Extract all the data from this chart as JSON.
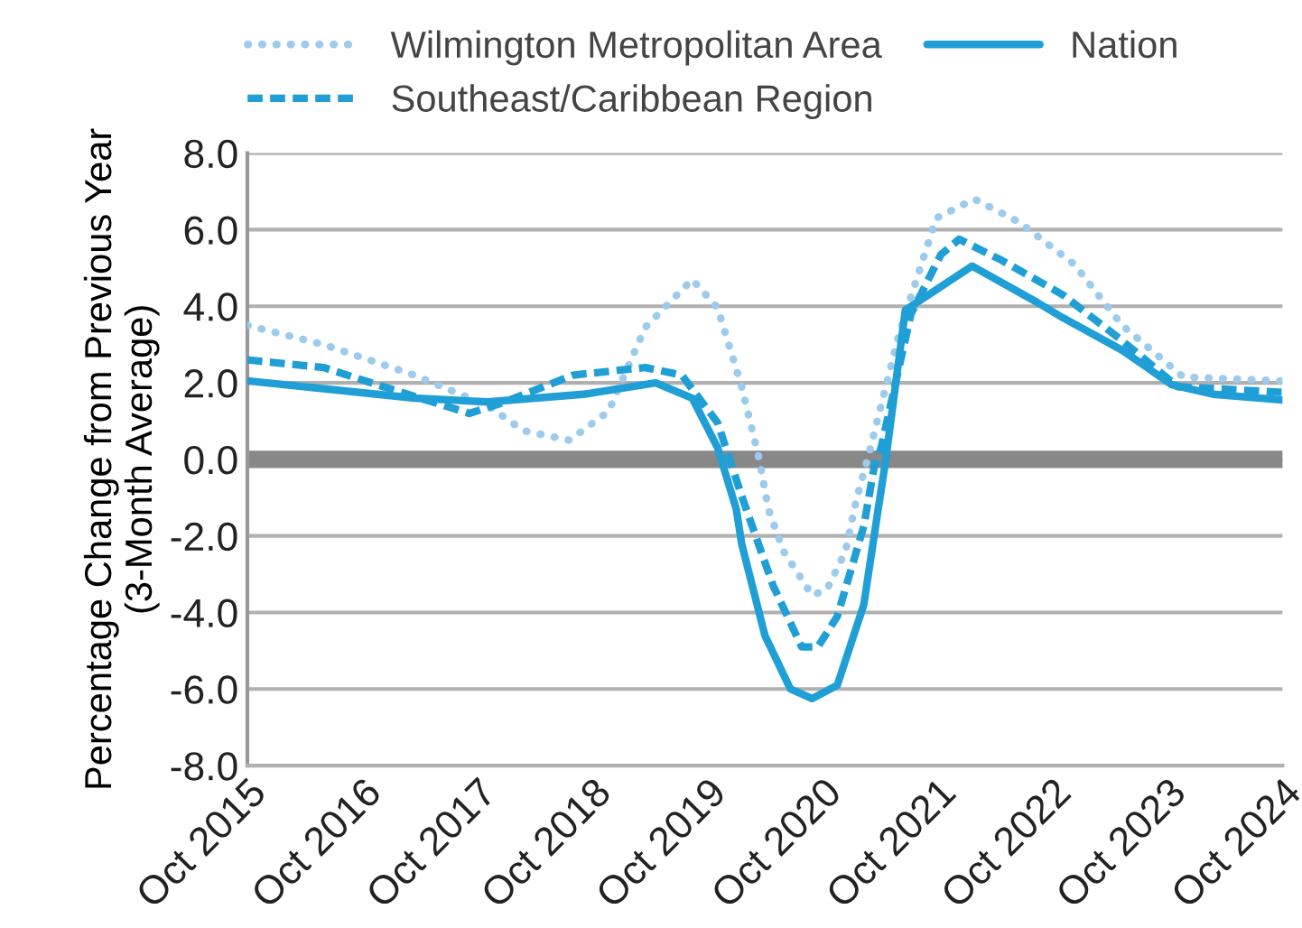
{
  "chart_data": {
    "type": "line",
    "ylabel": "Percentage Change from Previous Year\n(3-Month Average)",
    "xlim": [
      "2015-10-01",
      "2024-10-01"
    ],
    "xticks": [
      {
        "value": "2015-10-01",
        "label": "Oct 2015"
      },
      {
        "value": "2016-10-01",
        "label": "Oct 2016"
      },
      {
        "value": "2017-10-01",
        "label": "Oct 2017"
      },
      {
        "value": "2018-10-01",
        "label": "Oct 2018"
      },
      {
        "value": "2019-10-01",
        "label": "Oct 2019"
      },
      {
        "value": "2020-10-01",
        "label": "Oct 2020"
      },
      {
        "value": "2021-10-01",
        "label": "Oct 2021"
      },
      {
        "value": "2022-10-01",
        "label": "Oct 2022"
      },
      {
        "value": "2023-10-01",
        "label": "Oct 2023"
      },
      {
        "value": "2024-10-01",
        "label": "Oct 2024"
      }
    ],
    "ylim": [
      -8,
      8
    ],
    "yticks": [
      {
        "value": -8,
        "label": "-8.0"
      },
      {
        "value": -6,
        "label": "-6.0"
      },
      {
        "value": -4,
        "label": "-4.0"
      },
      {
        "value": -2,
        "label": "-2.0"
      },
      {
        "value": 0,
        "label": "0.0"
      },
      {
        "value": 2,
        "label": "2.0"
      },
      {
        "value": 4,
        "label": "4.0"
      },
      {
        "value": 6,
        "label": "6.0"
      },
      {
        "value": 8,
        "label": "8.0"
      }
    ],
    "grid": "y",
    "legend": "top",
    "marker": "none",
    "ref_lines": [
      {
        "axis": "y",
        "value": 0,
        "color": "#888888"
      }
    ],
    "series": [
      {
        "name": "Wilmington Metropolitan Area",
        "color": "#9ccbeb",
        "line_style": "dotted",
        "x": [
          "2015-10-01",
          "2016-05-30",
          "2017-03-14",
          "2017-11-03",
          "2018-02-24",
          "2018-07-20",
          "2018-11-21",
          "2019-03-18",
          "2019-08-14",
          "2019-11-03",
          "2020-01-18",
          "2020-03-14",
          "2020-04-12",
          "2020-05-30",
          "2020-08-29",
          "2020-10-15",
          "2020-12-13",
          "2021-01-15",
          "2021-02-24",
          "2021-06-02",
          "2021-09-27",
          "2022-01-26",
          "2022-06-17",
          "2022-12-09",
          "2023-05-11",
          "2023-11-21",
          "2024-10-01"
        ],
        "values": [
          3.5,
          3.0,
          2.2,
          1.4,
          0.75,
          0.5,
          1.25,
          3.45,
          4.7,
          3.95,
          1.9,
          0.0,
          -1.3,
          -2.4,
          -3.55,
          -3.4,
          -2.4,
          -1.1,
          0.1,
          3.3,
          6.3,
          6.8,
          6.2,
          5.1,
          3.5,
          2.15,
          2.05
        ]
      },
      {
        "name": "Southeast/Caribbean Region",
        "color": "#1f9fd5",
        "line_style": "dashed",
        "x": [
          "2015-10-01",
          "2016-05-30",
          "2016-12-05",
          "2017-09-05",
          "2017-12-27",
          "2018-07-31",
          "2019-03-18",
          "2019-07-12",
          "2019-11-03",
          "2020-01-18",
          "2020-04-27",
          "2020-07-27",
          "2020-09-16",
          "2020-11-17",
          "2021-02-09",
          "2021-03-14",
          "2021-04-05",
          "2021-07-09",
          "2021-10-12",
          "2021-12-09",
          "2022-04-23",
          "2022-11-03",
          "2023-05-11",
          "2023-11-03",
          "2024-10-01"
        ],
        "values": [
          2.6,
          2.4,
          1.9,
          1.2,
          1.5,
          2.2,
          2.4,
          2.2,
          0.95,
          -0.95,
          -3.3,
          -4.9,
          -4.9,
          -4.1,
          -1.75,
          -0.2,
          0.3,
          3.8,
          5.35,
          5.75,
          5.2,
          4.3,
          3.1,
          1.9,
          1.75
        ]
      },
      {
        "name": "Nation",
        "color": "#1f9fd5",
        "line_style": "solid",
        "x": [
          "2015-10-01",
          "2017-03-14",
          "2017-11-03",
          "2018-09-02",
          "2019-04-20",
          "2019-08-14",
          "2019-11-03",
          "2020-01-01",
          "2020-01-18",
          "2020-04-01",
          "2020-06-21",
          "2020-08-29",
          "2020-11-17",
          "2021-02-09",
          "2021-03-25",
          "2021-04-20",
          "2021-06-21",
          "2022-01-19",
          "2022-08-14",
          "2022-11-03",
          "2023-05-11",
          "2023-10-15",
          "2024-02-24",
          "2024-10-01"
        ],
        "values": [
          2.05,
          1.6,
          1.5,
          1.7,
          2.0,
          1.6,
          0.3,
          -1.3,
          -2.2,
          -4.6,
          -6.0,
          -6.25,
          -5.9,
          -3.8,
          -1.4,
          0.0,
          3.9,
          5.05,
          4.1,
          3.7,
          2.85,
          1.95,
          1.7,
          1.55
        ]
      }
    ]
  }
}
